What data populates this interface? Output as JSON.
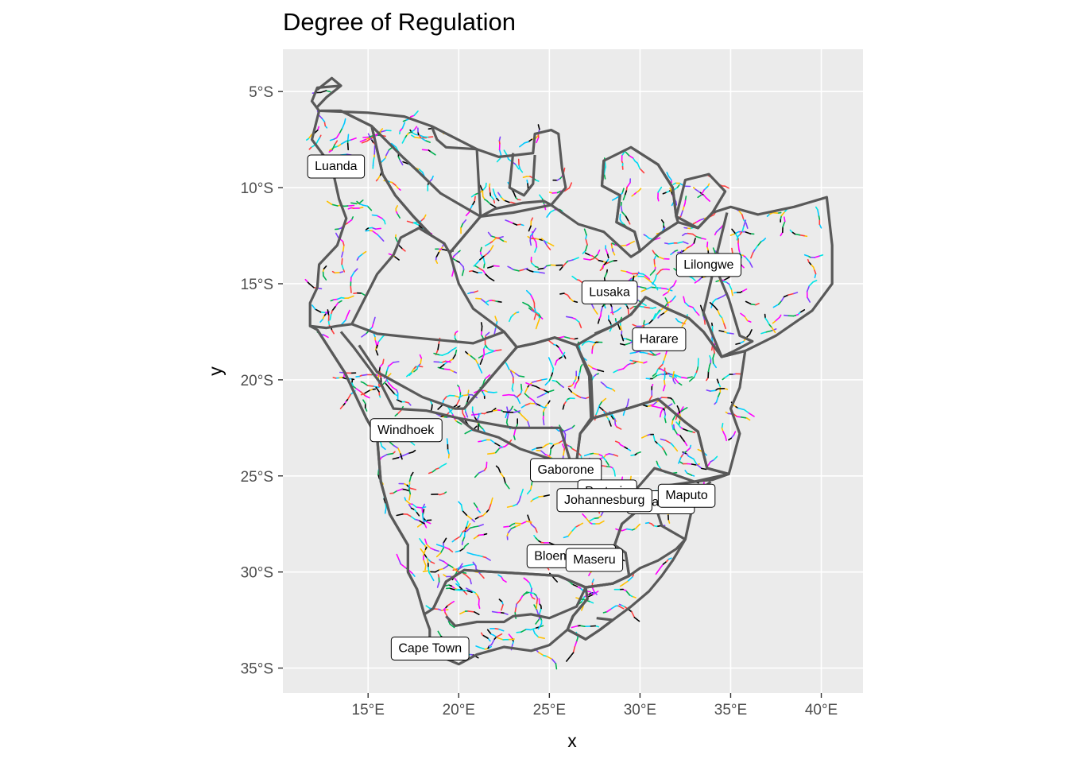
{
  "title": "Degree of Regulation",
  "xlabel": "x",
  "ylabel": "y",
  "x_ticks": [
    {
      "value": 15,
      "label": "15°E"
    },
    {
      "value": 20,
      "label": "20°E"
    },
    {
      "value": 25,
      "label": "25°E"
    },
    {
      "value": 30,
      "label": "30°E"
    },
    {
      "value": 35,
      "label": "35°E"
    },
    {
      "value": 40,
      "label": "40°E"
    }
  ],
  "y_ticks": [
    {
      "value": -5,
      "label": "5°S"
    },
    {
      "value": -10,
      "label": "10°S"
    },
    {
      "value": -15,
      "label": "15°S"
    },
    {
      "value": -20,
      "label": "20°S"
    },
    {
      "value": -25,
      "label": "25°S"
    },
    {
      "value": -30,
      "label": "30°S"
    },
    {
      "value": -35,
      "label": "35°S"
    }
  ],
  "x_range": [
    10.3,
    42.3
  ],
  "y_range": [
    -36.3,
    -2.8
  ],
  "panel_background": "#ebebeb",
  "grid_color": "#ffffff",
  "basin_border_color": "#595959",
  "river_palette": [
    "#000000",
    "#ff00ff",
    "#00c8ff",
    "#ffc000",
    "#ff4040",
    "#00b050",
    "#8040ff",
    "#00e5e5"
  ],
  "cities": [
    {
      "name": "Luanda",
      "lon": 13.23,
      "lat": -8.84
    },
    {
      "name": "Lilongwe",
      "lon": 33.79,
      "lat": -13.96
    },
    {
      "name": "Lusaka",
      "lon": 28.32,
      "lat": -15.39
    },
    {
      "name": "Harare",
      "lon": 31.05,
      "lat": -17.83
    },
    {
      "name": "Windhoek",
      "lon": 17.08,
      "lat": -22.56
    },
    {
      "name": "Gaborone",
      "lon": 25.91,
      "lat": -24.63
    },
    {
      "name": "Pretoria",
      "lon": 28.19,
      "lat": -25.75
    },
    {
      "name": "Mbabane",
      "lon": 31.14,
      "lat": -26.31
    },
    {
      "name": "Johannesburg",
      "lon": 28.04,
      "lat": -26.2
    },
    {
      "name": "Maputo",
      "lon": 32.57,
      "lat": -25.97
    },
    {
      "name": "Bloemfontein",
      "lon": 26.21,
      "lat": -29.12
    },
    {
      "name": "Maseru",
      "lon": 27.48,
      "lat": -29.31
    },
    {
      "name": "Cape Town",
      "lon": 18.42,
      "lat": -33.92
    }
  ],
  "basins": [
    [
      [
        13.5,
        -4.7
      ],
      [
        12.2,
        -4.8
      ],
      [
        11.9,
        -5.5
      ],
      [
        12.3,
        -6.0
      ],
      [
        15.0,
        -6.1
      ],
      [
        17.0,
        -6.3
      ],
      [
        18.5,
        -6.8
      ],
      [
        18.8,
        -7.5
      ],
      [
        19.3,
        -7.9
      ],
      [
        21.0,
        -8.0
      ],
      [
        22.2,
        -8.4
      ],
      [
        23.2,
        -8.3
      ],
      [
        24.1,
        -8.2
      ],
      [
        24.2,
        -7.2
      ],
      [
        25.1,
        -7.0
      ],
      [
        25.5,
        -7.2
      ],
      [
        25.7,
        -9.0
      ],
      [
        25.9,
        -10.0
      ],
      [
        25.1,
        -10.9
      ],
      [
        24.7,
        -10.7
      ],
      [
        23.5,
        -10.8
      ],
      [
        22.0,
        -11.1
      ],
      [
        21.2,
        -11.5
      ],
      [
        19.0,
        -10.3
      ],
      [
        17.8,
        -9.2
      ],
      [
        16.9,
        -8.4
      ],
      [
        15.2,
        -6.8
      ],
      [
        13.5,
        -6.0
      ],
      [
        12.4,
        -6.0
      ]
    ],
    [
      [
        18.5,
        -6.8
      ],
      [
        21.0,
        -8.0
      ],
      [
        21.2,
        -11.5
      ],
      [
        19.5,
        -13.4
      ],
      [
        19.2,
        -12.9
      ],
      [
        18.5,
        -12.5
      ],
      [
        17.5,
        -11.5
      ],
      [
        16.5,
        -10.4
      ],
      [
        15.8,
        -9.3
      ],
      [
        15.2,
        -6.8
      ]
    ],
    [
      [
        12.3,
        -6.0
      ],
      [
        11.9,
        -7.5
      ],
      [
        13.0,
        -8.9
      ],
      [
        13.4,
        -10.6
      ],
      [
        13.8,
        -11.6
      ],
      [
        13.3,
        -13.0
      ],
      [
        12.3,
        -14.0
      ],
      [
        12.2,
        -15.2
      ],
      [
        11.8,
        -16.0
      ],
      [
        11.8,
        -17.2
      ],
      [
        12.7,
        -17.3
      ],
      [
        13.3,
        -17.2
      ],
      [
        14.1,
        -17.1
      ],
      [
        15.5,
        -14.5
      ],
      [
        16.4,
        -13.5
      ],
      [
        16.8,
        -12.6
      ],
      [
        17.8,
        -12.1
      ],
      [
        18.5,
        -12.5
      ],
      [
        17.5,
        -11.5
      ],
      [
        16.5,
        -10.4
      ],
      [
        15.8,
        -9.3
      ],
      [
        15.2,
        -6.8
      ],
      [
        13.5,
        -6.0
      ]
    ],
    [
      [
        19.5,
        -13.4
      ],
      [
        21.2,
        -11.5
      ],
      [
        23.0,
        -11.3
      ],
      [
        25.1,
        -10.9
      ],
      [
        26.6,
        -11.9
      ],
      [
        28.0,
        -12.3
      ],
      [
        29.5,
        -13.6
      ],
      [
        30.0,
        -13.3
      ],
      [
        29.7,
        -12.3
      ],
      [
        28.7,
        -11.8
      ],
      [
        28.9,
        -10.4
      ],
      [
        27.9,
        -9.9
      ],
      [
        28.0,
        -8.6
      ],
      [
        29.5,
        -7.9
      ],
      [
        31.0,
        -8.8
      ],
      [
        31.8,
        -10.0
      ],
      [
        32.0,
        -11.5
      ],
      [
        33.2,
        -12.1
      ],
      [
        34.0,
        -11.3
      ],
      [
        35.0,
        -11.0
      ],
      [
        36.5,
        -11.4
      ],
      [
        38.5,
        -11.0
      ],
      [
        40.3,
        -10.5
      ],
      [
        40.6,
        -13.0
      ],
      [
        40.6,
        -15.0
      ],
      [
        39.5,
        -16.4
      ],
      [
        37.5,
        -17.7
      ],
      [
        35.8,
        -18.5
      ],
      [
        34.5,
        -18.8
      ],
      [
        33.5,
        -17.5
      ],
      [
        32.7,
        -16.8
      ],
      [
        31.5,
        -16.3
      ],
      [
        30.3,
        -15.7
      ],
      [
        29.5,
        -16.6
      ],
      [
        28.5,
        -17.2
      ],
      [
        27.6,
        -17.6
      ],
      [
        26.5,
        -18.2
      ],
      [
        25.3,
        -17.8
      ],
      [
        24.2,
        -18.1
      ],
      [
        23.2,
        -18.3
      ],
      [
        22.5,
        -17.5
      ],
      [
        20.8,
        -16.3
      ],
      [
        20.0,
        -15.0
      ],
      [
        19.5,
        -13.4
      ]
    ],
    [
      [
        28.0,
        -8.6
      ],
      [
        27.9,
        -9.9
      ],
      [
        28.9,
        -10.4
      ],
      [
        28.7,
        -11.8
      ],
      [
        29.7,
        -12.3
      ],
      [
        30.0,
        -13.3
      ],
      [
        31.1,
        -12.4
      ],
      [
        32.1,
        -11.8
      ],
      [
        32.0,
        -11.5
      ],
      [
        31.8,
        -10.0
      ],
      [
        31.0,
        -8.8
      ],
      [
        29.5,
        -7.9
      ]
    ],
    [
      [
        32.1,
        -11.8
      ],
      [
        33.2,
        -12.1
      ],
      [
        34.0,
        -11.3
      ],
      [
        34.7,
        -10.2
      ],
      [
        33.8,
        -9.3
      ],
      [
        32.5,
        -9.6
      ],
      [
        32.0,
        -11.5
      ]
    ],
    [
      [
        34.8,
        -11.3
      ],
      [
        34.1,
        -14.0
      ],
      [
        34.9,
        -15.8
      ],
      [
        35.5,
        -17.7
      ],
      [
        36.2,
        -18.0
      ],
      [
        35.2,
        -18.5
      ],
      [
        34.5,
        -18.8
      ],
      [
        33.8,
        -17.2
      ],
      [
        33.5,
        -16.5
      ],
      [
        34.0,
        -14.5
      ]
    ],
    [
      [
        14.1,
        -17.1
      ],
      [
        15.5,
        -17.6
      ],
      [
        17.5,
        -17.8
      ],
      [
        20.8,
        -18.1
      ],
      [
        22.5,
        -17.5
      ],
      [
        23.2,
        -18.3
      ],
      [
        21.2,
        -20.5
      ],
      [
        20.3,
        -21.5
      ],
      [
        19.8,
        -21.5
      ],
      [
        18.0,
        -20.9
      ],
      [
        15.5,
        -19.6
      ],
      [
        14.5,
        -18.2
      ]
    ],
    [
      [
        12.2,
        -17.4
      ],
      [
        13.7,
        -19.6
      ],
      [
        14.9,
        -22.0
      ],
      [
        15.5,
        -23.0
      ],
      [
        15.7,
        -25.3
      ],
      [
        16.2,
        -27.0
      ],
      [
        17.2,
        -28.6
      ],
      [
        17.2,
        -30.0
      ],
      [
        17.7,
        -30.9
      ],
      [
        18.1,
        -32.2
      ],
      [
        18.6,
        -31.9
      ],
      [
        19.3,
        -30.5
      ],
      [
        20.3,
        -29.9
      ],
      [
        22.0,
        -30.0
      ],
      [
        23.9,
        -30.1
      ],
      [
        25.5,
        -30.2
      ],
      [
        27.0,
        -30.8
      ],
      [
        28.5,
        -30.6
      ],
      [
        29.4,
        -30.2
      ],
      [
        29.2,
        -29.0
      ],
      [
        28.6,
        -28.6
      ],
      [
        29.0,
        -27.5
      ],
      [
        30.0,
        -26.7
      ],
      [
        29.6,
        -25.9
      ],
      [
        27.5,
        -25.7
      ],
      [
        26.4,
        -25.0
      ],
      [
        25.6,
        -22.5
      ],
      [
        23.0,
        -22.5
      ],
      [
        20.0,
        -22.0
      ],
      [
        18.2,
        -21.6
      ],
      [
        16.4,
        -21.5
      ],
      [
        15.7,
        -20.2
      ],
      [
        14.2,
        -18.3
      ],
      [
        13.5,
        -17.5
      ]
    ],
    [
      [
        20.3,
        -21.5
      ],
      [
        21.2,
        -20.5
      ],
      [
        23.2,
        -18.3
      ],
      [
        24.2,
        -18.1
      ],
      [
        25.3,
        -17.8
      ],
      [
        26.5,
        -18.2
      ],
      [
        27.2,
        -19.8
      ],
      [
        27.3,
        -22.0
      ],
      [
        26.7,
        -22.8
      ],
      [
        26.4,
        -25.0
      ],
      [
        25.0,
        -24.1
      ],
      [
        23.4,
        -23.6
      ],
      [
        22.2,
        -23.0
      ],
      [
        20.8,
        -22.6
      ],
      [
        20.0,
        -22.0
      ]
    ],
    [
      [
        26.4,
        -25.0
      ],
      [
        26.7,
        -22.8
      ],
      [
        27.4,
        -22.0
      ],
      [
        29.3,
        -21.5
      ],
      [
        31.0,
        -21.0
      ],
      [
        32.5,
        -22.2
      ],
      [
        33.2,
        -22.7
      ],
      [
        33.7,
        -24.6
      ],
      [
        34.9,
        -24.9
      ],
      [
        34.0,
        -25.2
      ],
      [
        33.0,
        -25.3
      ],
      [
        31.8,
        -24.9
      ],
      [
        30.8,
        -24.6
      ],
      [
        29.6,
        -25.9
      ],
      [
        27.5,
        -25.7
      ]
    ],
    [
      [
        27.5,
        -17.6
      ],
      [
        28.5,
        -17.2
      ],
      [
        29.5,
        -16.6
      ],
      [
        30.3,
        -15.7
      ],
      [
        31.5,
        -16.3
      ],
      [
        32.7,
        -16.8
      ],
      [
        33.5,
        -17.5
      ],
      [
        34.5,
        -18.8
      ],
      [
        35.8,
        -18.5
      ],
      [
        35.5,
        -20.4
      ],
      [
        35.0,
        -21.5
      ],
      [
        35.5,
        -22.8
      ],
      [
        34.9,
        -24.9
      ],
      [
        33.7,
        -24.6
      ],
      [
        33.2,
        -22.7
      ],
      [
        32.5,
        -22.2
      ],
      [
        31.0,
        -21.0
      ],
      [
        29.3,
        -21.5
      ],
      [
        27.4,
        -22.0
      ],
      [
        27.3,
        -19.8
      ],
      [
        26.5,
        -18.2
      ]
    ],
    [
      [
        34.9,
        -24.9
      ],
      [
        33.0,
        -25.3
      ],
      [
        31.5,
        -25.5
      ],
      [
        30.9,
        -26.7
      ],
      [
        31.2,
        -27.6
      ],
      [
        32.5,
        -28.3
      ],
      [
        32.8,
        -27.0
      ],
      [
        32.9,
        -26.1
      ],
      [
        33.9,
        -25.3
      ]
    ],
    [
      [
        30.9,
        -26.7
      ],
      [
        30.0,
        -26.7
      ],
      [
        29.0,
        -27.5
      ],
      [
        28.6,
        -28.6
      ],
      [
        29.2,
        -29.0
      ],
      [
        29.4,
        -30.2
      ],
      [
        28.5,
        -30.6
      ],
      [
        27.0,
        -30.8
      ],
      [
        27.1,
        -31.4
      ],
      [
        26.3,
        -32.3
      ],
      [
        26.0,
        -33.0
      ],
      [
        25.0,
        -33.8
      ],
      [
        24.0,
        -34.1
      ],
      [
        22.5,
        -33.9
      ],
      [
        21.0,
        -34.3
      ],
      [
        20.0,
        -34.8
      ],
      [
        19.0,
        -34.4
      ],
      [
        18.4,
        -34.1
      ],
      [
        18.4,
        -33.0
      ],
      [
        18.1,
        -32.2
      ],
      [
        17.7,
        -30.9
      ],
      [
        17.2,
        -30.0
      ],
      [
        17.2,
        -28.6
      ],
      [
        16.2,
        -27.0
      ],
      [
        15.7,
        -25.3
      ],
      [
        15.5,
        -23.0
      ],
      [
        14.9,
        -22.0
      ],
      [
        13.7,
        -19.6
      ],
      [
        12.2,
        -17.4
      ],
      [
        11.8,
        -17.2
      ]
    ],
    [
      [
        27.0,
        -30.8
      ],
      [
        28.5,
        -30.6
      ],
      [
        29.4,
        -30.2
      ],
      [
        30.0,
        -29.8
      ],
      [
        31.0,
        -29.4
      ],
      [
        32.0,
        -28.8
      ],
      [
        32.5,
        -28.3
      ],
      [
        31.8,
        -29.4
      ],
      [
        31.2,
        -30.2
      ],
      [
        30.5,
        -31.0
      ],
      [
        29.5,
        -31.8
      ],
      [
        28.5,
        -32.5
      ],
      [
        27.8,
        -33.0
      ],
      [
        27.0,
        -33.5
      ],
      [
        26.0,
        -33.0
      ],
      [
        26.3,
        -32.3
      ],
      [
        27.1,
        -31.4
      ]
    ],
    [
      [
        18.6,
        -31.9
      ],
      [
        19.3,
        -30.5
      ],
      [
        20.3,
        -29.9
      ],
      [
        22.0,
        -30.0
      ],
      [
        23.9,
        -30.1
      ],
      [
        25.5,
        -30.2
      ],
      [
        27.0,
        -30.8
      ],
      [
        26.5,
        -31.8
      ],
      [
        25.0,
        -32.4
      ],
      [
        24.0,
        -32.2
      ],
      [
        23.0,
        -32.3
      ],
      [
        22.5,
        -32.6
      ],
      [
        21.0,
        -32.6
      ],
      [
        19.8,
        -32.8
      ],
      [
        19.3,
        -32.3
      ]
    ],
    [
      [
        26.3,
        -32.3
      ],
      [
        26.0,
        -33.0
      ],
      [
        27.0,
        -33.5
      ],
      [
        27.8,
        -33.0
      ],
      [
        28.5,
        -32.5
      ],
      [
        27.6,
        -32.4
      ]
    ],
    [
      [
        12.2,
        -4.9
      ],
      [
        13.0,
        -4.3
      ],
      [
        13.5,
        -4.7
      ],
      [
        12.7,
        -5.3
      ],
      [
        12.2,
        -5.8
      ]
    ],
    [
      [
        23.0,
        -8.2
      ],
      [
        22.8,
        -10.0
      ],
      [
        23.6,
        -10.4
      ],
      [
        24.1,
        -9.8
      ],
      [
        24.2,
        -8.3
      ]
    ]
  ]
}
